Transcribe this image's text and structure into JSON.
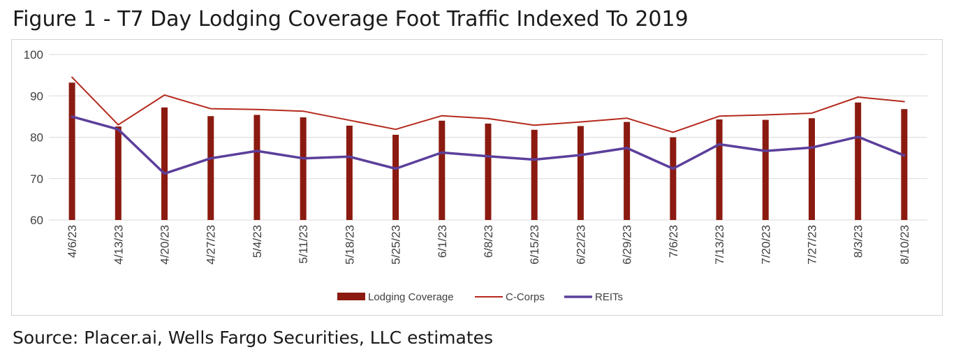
{
  "title": "Figure 1 - T7 Day Lodging Coverage Foot Traffic Indexed To 2019",
  "source": "Source: Placer.ai, Wells Fargo Securities, LLC estimates",
  "colors": {
    "bar": "#8b1a10",
    "ccorps": "#b5291d",
    "reits": "#5b3f9b",
    "grid": "#d9d9d9"
  },
  "chart_data": {
    "type": "bar",
    "categories": [
      "4/6/23",
      "4/13/23",
      "4/20/23",
      "4/27/23",
      "5/4/23",
      "5/11/23",
      "5/18/23",
      "5/25/23",
      "6/1/23",
      "6/8/23",
      "6/15/23",
      "6/22/23",
      "6/29/23",
      "7/6/23",
      "7/13/23",
      "7/20/23",
      "7/27/23",
      "8/3/23",
      "8/10/23"
    ],
    "ylim": [
      60,
      100
    ],
    "yticks": [
      60,
      70,
      80,
      90,
      100
    ],
    "grid": true,
    "legend_position": "bottom",
    "series": [
      {
        "name": "Lodging Coverage",
        "type": "bar",
        "values": [
          93.2,
          82.6,
          87.2,
          85.1,
          85.4,
          84.8,
          82.8,
          80.6,
          84.0,
          83.3,
          81.8,
          82.7,
          83.7,
          80.0,
          84.3,
          84.2,
          84.6,
          88.4,
          86.8
        ]
      },
      {
        "name": "C-Corps",
        "type": "line",
        "values": [
          94.5,
          83.0,
          90.2,
          86.9,
          86.7,
          86.3,
          84.1,
          81.9,
          85.2,
          84.5,
          82.9,
          83.7,
          84.6,
          81.2,
          85.1,
          85.4,
          85.8,
          89.7,
          88.6
        ]
      },
      {
        "name": "REITs",
        "type": "line",
        "values": [
          85.0,
          81.9,
          71.2,
          74.9,
          76.7,
          74.9,
          75.3,
          72.4,
          76.3,
          75.4,
          74.6,
          75.7,
          77.4,
          72.4,
          78.3,
          76.7,
          77.5,
          80.1,
          75.6
        ]
      }
    ]
  }
}
